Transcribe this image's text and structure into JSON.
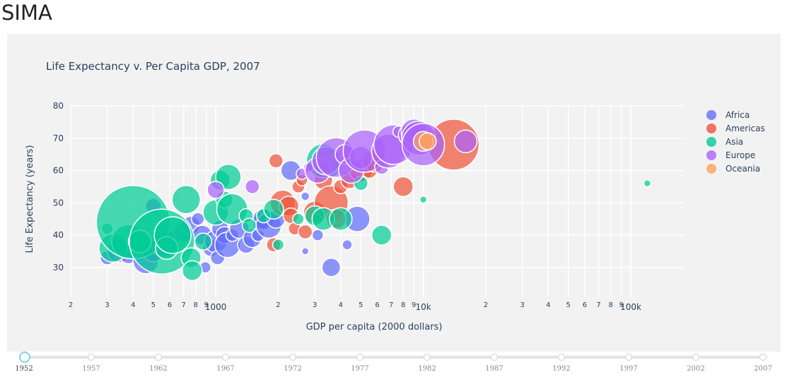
{
  "app": {
    "title": "SIMA"
  },
  "chart_data": {
    "type": "scatter",
    "title": "Life Expectancy v. Per Capita GDP, 2007",
    "xlabel": "GDP per capita (2000 dollars)",
    "ylabel": "Life Expectancy (years)",
    "xscale": "log",
    "xlim": [
      200,
      180000
    ],
    "ylim": [
      21,
      80
    ],
    "yticks": [
      30,
      40,
      50,
      60,
      70,
      80
    ],
    "xticks_major": [
      {
        "value": 1000,
        "label": "1000"
      },
      {
        "value": 10000,
        "label": "10k"
      },
      {
        "value": 100000,
        "label": "100k"
      }
    ],
    "xticks_minor": [
      {
        "value": 200,
        "label": "2"
      },
      {
        "value": 300,
        "label": "3"
      },
      {
        "value": 400,
        "label": "4"
      },
      {
        "value": 500,
        "label": "5"
      },
      {
        "value": 600,
        "label": "6"
      },
      {
        "value": 700,
        "label": "7"
      },
      {
        "value": 800,
        "label": "8"
      },
      {
        "value": 900,
        "label": "9"
      },
      {
        "value": 2000,
        "label": "2"
      },
      {
        "value": 3000,
        "label": "3"
      },
      {
        "value": 4000,
        "label": "4"
      },
      {
        "value": 5000,
        "label": "5"
      },
      {
        "value": 6000,
        "label": "6"
      },
      {
        "value": 7000,
        "label": "7"
      },
      {
        "value": 8000,
        "label": "8"
      },
      {
        "value": 9000,
        "label": "9"
      },
      {
        "value": 20000,
        "label": "2"
      },
      {
        "value": 30000,
        "label": "3"
      },
      {
        "value": 40000,
        "label": "4"
      },
      {
        "value": 50000,
        "label": "5"
      },
      {
        "value": 60000,
        "label": "6"
      },
      {
        "value": 70000,
        "label": "7"
      },
      {
        "value": 80000,
        "label": "8"
      },
      {
        "value": 90000,
        "label": "9"
      }
    ],
    "grid": true,
    "legend_position": "right",
    "series": [
      {
        "name": "Africa",
        "color": "#636efa",
        "points": [
          [
            300,
            33,
            10
          ],
          [
            340,
            35,
            16
          ],
          [
            380,
            34,
            13
          ],
          [
            460,
            32,
            18
          ],
          [
            500,
            35,
            15
          ],
          [
            560,
            37,
            17
          ],
          [
            620,
            39,
            11
          ],
          [
            700,
            41,
            14
          ],
          [
            760,
            43,
            13
          ],
          [
            820,
            45,
            9
          ],
          [
            860,
            40,
            14
          ],
          [
            890,
            30,
            8
          ],
          [
            950,
            36,
            12
          ],
          [
            1000,
            38,
            16
          ],
          [
            1020,
            33,
            10
          ],
          [
            1050,
            42,
            12
          ],
          [
            1100,
            40,
            12
          ],
          [
            1140,
            37,
            18
          ],
          [
            1200,
            40,
            9
          ],
          [
            1300,
            42,
            14
          ],
          [
            1400,
            37,
            12
          ],
          [
            1500,
            39,
            13
          ],
          [
            1600,
            40,
            9
          ],
          [
            1650,
            44,
            12
          ],
          [
            1700,
            45,
            15
          ],
          [
            1800,
            43,
            18
          ],
          [
            1950,
            45,
            13
          ],
          [
            2300,
            60,
            14
          ],
          [
            2700,
            52,
            6
          ],
          [
            2700,
            35,
            5
          ],
          [
            3600,
            30,
            13
          ],
          [
            4300,
            37,
            7
          ],
          [
            4800,
            45,
            18
          ],
          [
            3100,
            40,
            8
          ],
          [
            500,
            49,
            11
          ]
        ]
      },
      {
        "name": "Americas",
        "color": "#ef553b",
        "points": [
          [
            1900,
            37,
            10
          ],
          [
            1950,
            63,
            10
          ],
          [
            2100,
            50,
            18
          ],
          [
            2250,
            49,
            14
          ],
          [
            2300,
            46,
            11
          ],
          [
            2400,
            42,
            9
          ],
          [
            2500,
            55,
            9
          ],
          [
            2600,
            57,
            8
          ],
          [
            2700,
            41,
            10
          ],
          [
            3000,
            47,
            16
          ],
          [
            3300,
            57,
            13
          ],
          [
            3600,
            50,
            24
          ],
          [
            3800,
            45,
            14
          ],
          [
            4000,
            55,
            10
          ],
          [
            4400,
            57,
            12
          ],
          [
            5000,
            60,
            16
          ],
          [
            5500,
            60,
            11
          ],
          [
            5800,
            63,
            16
          ],
          [
            8000,
            55,
            14
          ],
          [
            14000,
            68,
            36
          ]
        ]
      },
      {
        "name": "Asia",
        "color": "#00cc96",
        "points": [
          [
            300,
            42,
            8
          ],
          [
            320,
            36,
            20
          ],
          [
            380,
            38,
            24
          ],
          [
            400,
            44,
            52
          ],
          [
            430,
            38,
            16
          ],
          [
            550,
            38,
            46
          ],
          [
            580,
            36,
            16
          ],
          [
            620,
            40,
            26
          ],
          [
            720,
            51,
            20
          ],
          [
            760,
            33,
            14
          ],
          [
            770,
            29,
            14
          ],
          [
            870,
            38,
            12
          ],
          [
            1000,
            47,
            18
          ],
          [
            1050,
            57,
            14
          ],
          [
            1100,
            51,
            12
          ],
          [
            1150,
            58,
            18
          ],
          [
            1200,
            48,
            22
          ],
          [
            1400,
            46,
            10
          ],
          [
            1450,
            43,
            10
          ],
          [
            1700,
            46,
            10
          ],
          [
            1900,
            48,
            14
          ],
          [
            2000,
            37,
            8
          ],
          [
            2500,
            45,
            8
          ],
          [
            3000,
            46,
            14
          ],
          [
            3300,
            63,
            24
          ],
          [
            3300,
            45,
            16
          ],
          [
            3600,
            61,
            14
          ],
          [
            4000,
            45,
            16
          ],
          [
            5000,
            56,
            10
          ],
          [
            6300,
            40,
            14
          ],
          [
            10000,
            51,
            5
          ],
          [
            120000,
            56,
            5
          ]
        ]
      },
      {
        "name": "Europe",
        "color": "#ab63fa",
        "points": [
          [
            1000,
            54,
            12
          ],
          [
            1500,
            55,
            10
          ],
          [
            2600,
            59,
            8
          ],
          [
            2800,
            61,
            7
          ],
          [
            3100,
            60,
            18
          ],
          [
            3400,
            63,
            20
          ],
          [
            3800,
            64,
            28
          ],
          [
            4200,
            65,
            14
          ],
          [
            4500,
            60,
            18
          ],
          [
            5000,
            64,
            16
          ],
          [
            5200,
            66,
            30
          ],
          [
            6300,
            61,
            10
          ],
          [
            6800,
            66,
            24
          ],
          [
            7200,
            68,
            28
          ],
          [
            7600,
            72,
            8
          ],
          [
            8200,
            70,
            8
          ],
          [
            8600,
            71,
            16
          ],
          [
            9000,
            72,
            18
          ],
          [
            9500,
            70,
            24
          ],
          [
            10000,
            68,
            30
          ],
          [
            16000,
            69,
            16
          ]
        ]
      },
      {
        "name": "Oceania",
        "color": "#ffa15a",
        "points": [
          [
            10000,
            69,
            14
          ],
          [
            10500,
            69,
            12
          ]
        ]
      }
    ]
  },
  "slider": {
    "years": [
      "1952",
      "1957",
      "1962",
      "1967",
      "1972",
      "1977",
      "1982",
      "1987",
      "1992",
      "1997",
      "2002",
      "2007"
    ],
    "current": "1952"
  }
}
